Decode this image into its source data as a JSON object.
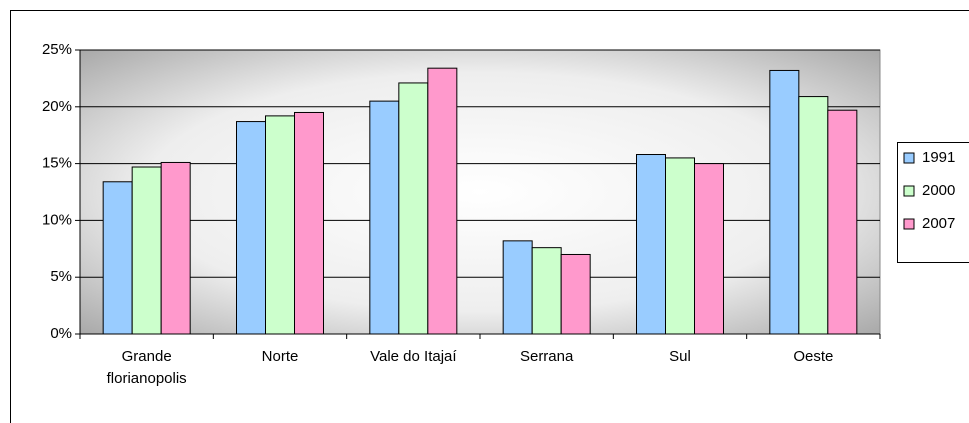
{
  "chart_data": {
    "type": "bar",
    "categories": [
      "Grande florianopolis",
      "Norte",
      "Vale do Itajaí",
      "Serrana",
      "Sul",
      "Oeste"
    ],
    "series": [
      {
        "name": "1991",
        "color": "#99ccff",
        "values": [
          13.4,
          18.7,
          20.5,
          8.2,
          15.8,
          23.2
        ]
      },
      {
        "name": "2000",
        "color": "#ccffcc",
        "values": [
          14.7,
          19.2,
          22.1,
          7.6,
          15.5,
          20.9
        ]
      },
      {
        "name": "2007",
        "color": "#ff99cc",
        "values": [
          15.1,
          19.5,
          23.4,
          7.0,
          15.0,
          19.7
        ]
      }
    ],
    "ylim": [
      0,
      25
    ],
    "yticks": [
      {
        "value": 0,
        "label": "0%"
      },
      {
        "value": 5,
        "label": "5%"
      },
      {
        "value": 10,
        "label": "10%"
      },
      {
        "value": 15,
        "label": "15%"
      },
      {
        "value": 20,
        "label": "20%"
      },
      {
        "value": 25,
        "label": "25%"
      }
    ],
    "grid": true,
    "legend": "right"
  }
}
